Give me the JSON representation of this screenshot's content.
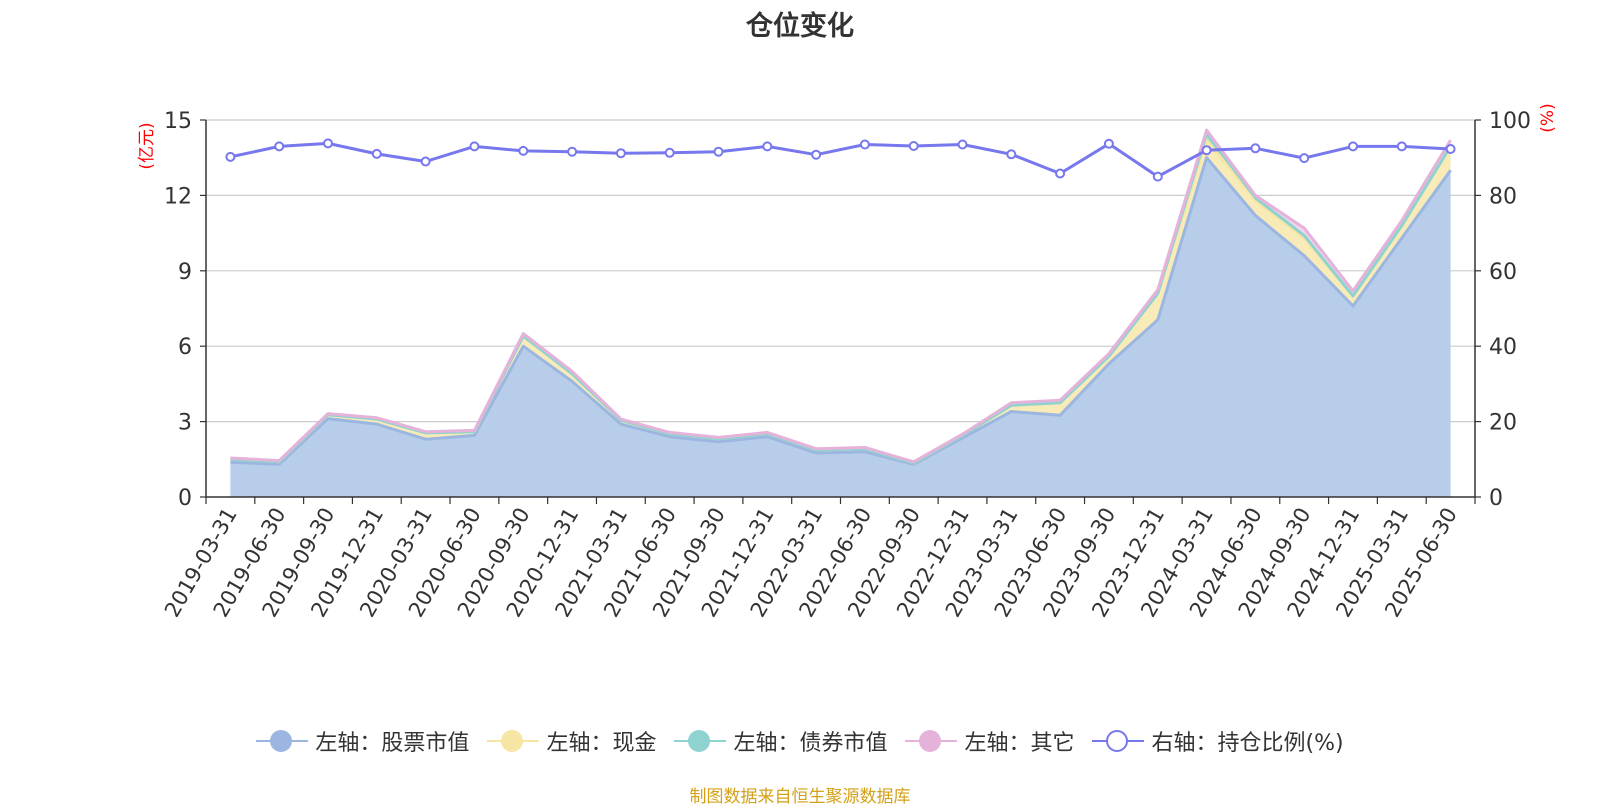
{
  "title": "仓位变化",
  "source": "制图数据来自恒生聚源数据库",
  "colors": {
    "stock": "#9bb6e0",
    "stock_fill": "#b8cde9",
    "cash": "#f7e6a3",
    "cash_fill": "#f9ebb8",
    "bond": "#8fd3d0",
    "bond_fill": "#a7dbd8",
    "other": "#e5b3da",
    "ratio": "#7777ee",
    "axis_name": "#ff0000",
    "title": "#333333",
    "source": "#d4a017"
  },
  "legend": [
    {
      "key": "stock",
      "label": "左轴：股票市值",
      "color": "#9bb6e0",
      "hollow": false
    },
    {
      "key": "cash",
      "label": "左轴：现金",
      "color": "#f7e6a3",
      "hollow": false
    },
    {
      "key": "bond",
      "label": "左轴：债券市值",
      "color": "#8fd3d0",
      "hollow": false
    },
    {
      "key": "other",
      "label": "左轴：其它",
      "color": "#e5b3da",
      "hollow": false
    },
    {
      "key": "ratio",
      "label": "右轴：持仓比例(%)",
      "color": "#7777ee",
      "hollow": true
    }
  ],
  "chart_data": {
    "type": "area",
    "title": "仓位变化",
    "x": [
      "2019-03-31",
      "2019-06-30",
      "2019-09-30",
      "2019-12-31",
      "2020-03-31",
      "2020-06-30",
      "2020-09-30",
      "2020-12-31",
      "2021-03-31",
      "2021-06-30",
      "2021-09-30",
      "2021-12-31",
      "2022-03-31",
      "2022-06-30",
      "2022-09-30",
      "2022-12-31",
      "2023-03-31",
      "2023-06-30",
      "2023-09-30",
      "2023-12-31",
      "2024-03-31",
      "2024-06-30",
      "2024-09-30",
      "2024-12-31",
      "2025-03-31",
      "2025-06-30"
    ],
    "y_left": {
      "name": "(亿元)",
      "min": 0,
      "max": 15,
      "ticks": [
        0,
        3,
        6,
        9,
        12,
        15
      ]
    },
    "y_right": {
      "name": "(%)",
      "min": 0,
      "max": 100,
      "ticks": [
        0,
        20,
        40,
        60,
        80,
        100
      ]
    },
    "grid": true,
    "legend_position": "bottom",
    "series": [
      {
        "name": "左轴：股票市值",
        "key": "stock",
        "axis": "left",
        "stacked": true,
        "values": [
          1.38,
          1.3,
          3.12,
          2.9,
          2.3,
          2.45,
          6.0,
          4.6,
          2.9,
          2.4,
          2.2,
          2.4,
          1.75,
          1.8,
          1.3,
          2.35,
          3.4,
          3.25,
          5.3,
          7.05,
          13.5,
          11.2,
          9.6,
          7.6,
          10.3,
          13.0
        ]
      },
      {
        "name": "左轴：现金",
        "key": "cash",
        "axis": "left",
        "stacked": true,
        "values": [
          0.12,
          0.1,
          0.15,
          0.2,
          0.25,
          0.15,
          0.4,
          0.3,
          0.15,
          0.12,
          0.12,
          0.12,
          0.12,
          0.12,
          0.05,
          0.1,
          0.25,
          0.5,
          0.3,
          1.05,
          0.7,
          0.6,
          0.7,
          0.4,
          0.5,
          0.95
        ]
      },
      {
        "name": "左轴：债券市值",
        "key": "bond",
        "axis": "left",
        "stacked": true,
        "values": [
          0,
          0,
          0,
          0,
          0,
          0,
          0,
          0,
          0,
          0,
          0,
          0,
          0,
          0,
          0,
          0,
          0,
          0,
          0,
          0,
          0.25,
          0.1,
          0.1,
          0,
          0,
          0
        ]
      },
      {
        "name": "左轴：其它",
        "key": "other",
        "axis": "left",
        "stacked": true,
        "values": [
          0.05,
          0.05,
          0.05,
          0.05,
          0.05,
          0.05,
          0.1,
          0.1,
          0.05,
          0.05,
          0.05,
          0.05,
          0.05,
          0.05,
          0.05,
          0.05,
          0.1,
          0.1,
          0.1,
          0.15,
          0.15,
          0.1,
          0.3,
          0.2,
          0.2,
          0.25
        ]
      },
      {
        "name": "右轴：持仓比例(%)",
        "key": "ratio",
        "axis": "right",
        "stacked": false,
        "values": [
          90.2,
          93.0,
          93.8,
          91.0,
          89.0,
          93.0,
          91.8,
          91.6,
          91.2,
          91.3,
          91.6,
          93.0,
          90.8,
          93.5,
          93.1,
          93.5,
          90.9,
          85.8,
          93.7,
          85.0,
          92.0,
          92.5,
          89.9,
          93.0,
          93.0,
          92.3
        ]
      }
    ]
  }
}
